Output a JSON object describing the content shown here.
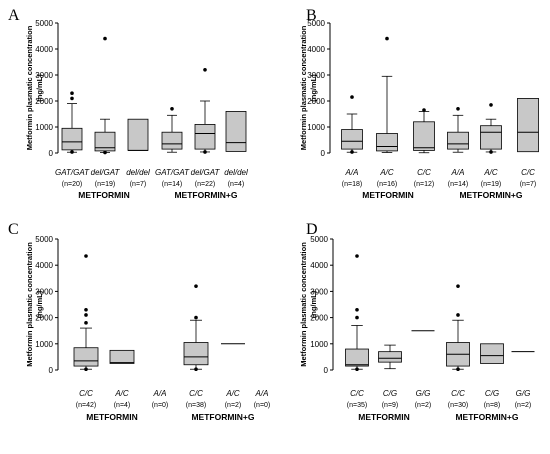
{
  "figure": {
    "box_fill": "#c8c8c8",
    "stroke": "#000000",
    "background": "#ffffff"
  },
  "chart_data": [
    {
      "type": "boxplot",
      "panel_label": "A",
      "ylabel": [
        "Metformin plasmatic concentration",
        "(ng/mL)"
      ],
      "ylim": [
        0,
        5000
      ],
      "yticks": [
        0,
        1000,
        2000,
        3000,
        4000,
        5000
      ],
      "groups": [
        {
          "label": "METFORMIN",
          "categories": [
            0,
            1,
            2
          ]
        },
        {
          "label": "METFORMIN+G",
          "categories": [
            3,
            4,
            5
          ]
        }
      ],
      "categories": [
        {
          "label": "GAT/GAT",
          "n": "(n=20)",
          "whisker_low": 30,
          "q1": 120,
          "median": 430,
          "q3": 950,
          "whisker_high": 1900,
          "outliers": [
            2100,
            2300,
            40
          ]
        },
        {
          "label": "del/GAT",
          "n": "(n=19)",
          "whisker_low": 20,
          "q1": 80,
          "median": 200,
          "q3": 800,
          "whisker_high": 1300,
          "outliers": [
            4400,
            20
          ]
        },
        {
          "label": "del/del",
          "n": "(n=7)",
          "whisker_low": 100,
          "q1": 100,
          "median": 100,
          "q3": 1300,
          "whisker_high": 1300,
          "outliers": []
        },
        {
          "label": "GAT/GAT",
          "n": "(n=14)",
          "whisker_low": 30,
          "q1": 150,
          "median": 350,
          "q3": 800,
          "whisker_high": 1450,
          "outliers": [
            1700
          ]
        },
        {
          "label": "del/GAT",
          "n": "(n=22)",
          "whisker_low": 40,
          "q1": 150,
          "median": 750,
          "q3": 1100,
          "whisker_high": 2000,
          "outliers": [
            3200,
            40
          ]
        },
        {
          "label": "del/del",
          "n": "(n=4)",
          "whisker_low": 60,
          "q1": 60,
          "median": 400,
          "q3": 1600,
          "whisker_high": 1600,
          "outliers": []
        }
      ]
    },
    {
      "type": "boxplot",
      "panel_label": "B",
      "ylabel": [
        "Metformin plasmatic concentration",
        "(ng/mL)"
      ],
      "ylim": [
        0,
        5000
      ],
      "yticks": [
        0,
        1000,
        2000,
        3000,
        4000,
        5000
      ],
      "groups": [
        {
          "label": "METFORMIN",
          "categories": [
            0,
            1,
            2
          ]
        },
        {
          "label": "METFORMIN+G",
          "categories": [
            3,
            4,
            5
          ]
        }
      ],
      "categories": [
        {
          "label": "A/A",
          "n": "(n=18)",
          "whisker_low": 30,
          "q1": 150,
          "median": 450,
          "q3": 900,
          "whisker_high": 1500,
          "outliers": [
            2150,
            40
          ]
        },
        {
          "label": "A/C",
          "n": "(n=16)",
          "whisker_low": 20,
          "q1": 80,
          "median": 250,
          "q3": 750,
          "whisker_high": 2950,
          "outliers": [
            4400
          ]
        },
        {
          "label": "C/C",
          "n": "(n=12)",
          "whisker_low": 10,
          "q1": 100,
          "median": 200,
          "q3": 1200,
          "whisker_high": 1600,
          "outliers": [
            1650
          ]
        },
        {
          "label": "A/A",
          "n": "(n=14)",
          "whisker_low": 30,
          "q1": 150,
          "median": 350,
          "q3": 800,
          "whisker_high": 1450,
          "outliers": [
            1700
          ]
        },
        {
          "label": "A/C",
          "n": "(n=19)",
          "whisker_low": 40,
          "q1": 150,
          "median": 800,
          "q3": 1050,
          "whisker_high": 1300,
          "outliers": [
            1850,
            40
          ]
        },
        {
          "label": "C/C",
          "n": "(n=7)",
          "whisker_low": 50,
          "q1": 50,
          "median": 800,
          "q3": 2100,
          "whisker_high": 2100,
          "outliers": []
        }
      ]
    },
    {
      "type": "boxplot",
      "panel_label": "C",
      "ylabel": [
        "Metformin plasmatic concentration",
        "(ng/mL)"
      ],
      "ylim": [
        0,
        5000
      ],
      "yticks": [
        0,
        1000,
        2000,
        3000,
        4000,
        5000
      ],
      "groups": [
        {
          "label": "METFORMIN",
          "categories": [
            0,
            1,
            2
          ]
        },
        {
          "label": "METFORMIN+G",
          "categories": [
            3,
            4,
            5
          ]
        }
      ],
      "categories": [
        {
          "label": "C/C",
          "n": "(n=42)",
          "whisker_low": 30,
          "q1": 150,
          "median": 350,
          "q3": 850,
          "whisker_high": 1600,
          "outliers": [
            4350,
            2300,
            2100,
            1800,
            30
          ]
        },
        {
          "label": "A/C",
          "n": "(n=4)",
          "whisker_low": 250,
          "q1": 250,
          "median": 280,
          "q3": 750,
          "whisker_high": 750,
          "outliers": []
        },
        {
          "label": "A/A",
          "n": "(n=0)",
          "whisker_low": null,
          "q1": null,
          "median": null,
          "q3": null,
          "whisker_high": null,
          "outliers": []
        },
        {
          "label": "C/C",
          "n": "(n=38)",
          "whisker_low": 30,
          "q1": 200,
          "median": 500,
          "q3": 1050,
          "whisker_high": 1900,
          "outliers": [
            3200,
            2000,
            30
          ]
        },
        {
          "label": "A/C",
          "n": "(n=2)",
          "whisker_low": 1000,
          "q1": 1000,
          "median": 1000,
          "q3": 1000,
          "whisker_high": 1000,
          "outliers": []
        },
        {
          "label": "A/A",
          "n": "(n=0)",
          "whisker_low": null,
          "q1": null,
          "median": null,
          "q3": null,
          "whisker_high": null,
          "outliers": []
        }
      ]
    },
    {
      "type": "boxplot",
      "panel_label": "D",
      "ylabel": [
        "Metformin plasmatic concentration",
        "(ng/mL)"
      ],
      "ylim": [
        0,
        5000
      ],
      "yticks": [
        0,
        1000,
        2000,
        3000,
        4000,
        5000
      ],
      "groups": [
        {
          "label": "METFORMIN",
          "categories": [
            0,
            1,
            2
          ]
        },
        {
          "label": "METFORMIN+G",
          "categories": [
            3,
            4,
            5
          ]
        }
      ],
      "categories": [
        {
          "label": "C/C",
          "n": "(n=35)",
          "whisker_low": 30,
          "q1": 150,
          "median": 200,
          "q3": 800,
          "whisker_high": 1700,
          "outliers": [
            4350,
            2300,
            2000,
            30
          ]
        },
        {
          "label": "C/G",
          "n": "(n=9)",
          "whisker_low": 50,
          "q1": 300,
          "median": 450,
          "q3": 700,
          "whisker_high": 950,
          "outliers": []
        },
        {
          "label": "G/G",
          "n": "(n=2)",
          "whisker_low": 1500,
          "q1": 1500,
          "median": 1500,
          "q3": 1500,
          "whisker_high": 1500,
          "outliers": []
        },
        {
          "label": "C/C",
          "n": "(n=30)",
          "whisker_low": 30,
          "q1": 150,
          "median": 600,
          "q3": 1050,
          "whisker_high": 1900,
          "outliers": [
            3200,
            2100,
            30
          ]
        },
        {
          "label": "C/G",
          "n": "(n=8)",
          "whisker_low": 250,
          "q1": 250,
          "median": 550,
          "q3": 1000,
          "whisker_high": 1000,
          "outliers": []
        },
        {
          "label": "G/G",
          "n": "(n=2)",
          "whisker_low": 700,
          "q1": 700,
          "median": 700,
          "q3": 700,
          "whisker_high": 700,
          "outliers": []
        }
      ]
    }
  ]
}
